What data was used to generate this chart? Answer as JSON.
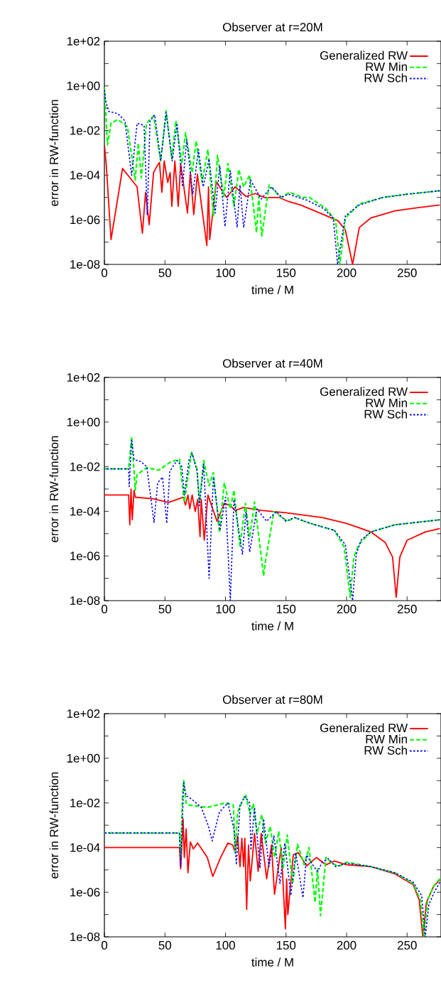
{
  "chart_data": [
    {
      "type": "line",
      "title": "Observer at r=20M",
      "xlabel": "time / M",
      "ylabel": "error in RW-function",
      "log": "y",
      "legend": "top right",
      "xlim": [
        0,
        278
      ],
      "xticks": [
        0,
        50,
        100,
        150,
        200,
        250
      ],
      "ylim": [
        1e-08,
        100
      ],
      "yticks": [
        {
          "value": 1e-08,
          "label": "1e-08"
        },
        {
          "value": 1e-07,
          "label": null
        },
        {
          "value": 1e-06,
          "label": "1e-06"
        },
        {
          "value": 1e-05,
          "label": null
        },
        {
          "value": 0.0001,
          "label": "1e-04"
        },
        {
          "value": 0.001,
          "label": null
        },
        {
          "value": 0.01,
          "label": "1e-02"
        },
        {
          "value": 0.1,
          "label": null
        },
        {
          "value": 1,
          "label": "1e+00"
        },
        {
          "value": 10,
          "label": null
        },
        {
          "value": 100,
          "label": "1e+02"
        }
      ],
      "series": [
        {
          "name": "Generalized RW",
          "color": "#ff0000",
          "line_style": "solid",
          "x": [
            0,
            1.5,
            5.5,
            15,
            27,
            31.4,
            34,
            37,
            40.6,
            43.5,
            45.5,
            47.5,
            49.4,
            52.3,
            54.3,
            55.7,
            58.2,
            61,
            63,
            68.6,
            71,
            73.8,
            76.8,
            84.6,
            86,
            87,
            92.4,
            101,
            108,
            117,
            124.6,
            132,
            144,
            152,
            162,
            181,
            193,
            199,
            205,
            210.5,
            220,
            240,
            259,
            277
          ],
          "values": [
            0.0023,
            0.0003,
            1.3e-07,
            0.0002,
            3e-05,
            2.5e-07,
            1.7e-05,
            6e-07,
            0.00013,
            0.00026,
            0.00037,
            1.7e-05,
            0.00043,
            4.7e-05,
            0.00013,
            4e-06,
            0.00043,
            4e-06,
            0.00033,
            2e-06,
            0.00013,
            1.7e-06,
            0.00011,
            7e-08,
            3e-05,
            1.3e-07,
            5e-05,
            1e-05,
            3e-05,
            1.1e-05,
            1.5e-05,
            1e-05,
            1e-05,
            6.6e-06,
            4.6e-06,
            1.7e-06,
            9e-07,
            3.5e-07,
            1e-08,
            4.5e-07,
            1.2e-06,
            2.5e-06,
            3.5e-06,
            4.6e-06
          ]
        },
        {
          "name": "RW Min",
          "color": "#00ff00",
          "line_style": "dashed",
          "x": [
            0,
            2.5,
            5.5,
            11,
            19,
            25.4,
            28,
            30.5,
            34.8,
            40.6,
            46.5,
            51,
            55.7,
            59,
            64,
            67,
            72.5,
            75.8,
            80.7,
            85.5,
            90,
            93.4,
            98.6,
            102,
            107,
            111,
            115,
            120,
            125.6,
            127.5,
            130,
            136,
            145.7,
            153,
            163.7,
            169.5,
            183,
            191,
            194.5,
            199,
            210.5,
            230,
            250,
            277
          ],
          "values": [
            0.85,
            0.0023,
            0.021,
            0.031,
            0.015,
            6e-05,
            0.0027,
            7.6e-05,
            0.021,
            0.045,
            0.00043,
            0.076,
            0.00054,
            0.027,
            0.00033,
            0.008,
            0.00013,
            0.0034,
            4.7e-05,
            0.0014,
            1.5e-06,
            0.00078,
            1.1e-05,
            0.00033,
            4e-06,
            0.00018,
            3e-05,
            9.8e-05,
            2.7e-07,
            1.1e-05,
            1.9e-07,
            3.6e-05,
            1e-05,
            1.7e-05,
            1e-05,
            1e-05,
            3.2e-06,
            9e-07,
            1e-08,
            1.2e-06,
            5.1e-06,
            1e-05,
            1.4e-05,
            2e-05
          ]
        },
        {
          "name": "RW Sch",
          "color": "#0000ff",
          "line_style": "dotted",
          "x": [
            0,
            1.2,
            3.5,
            11,
            17,
            22.5,
            27,
            32.8,
            35.4,
            37.7,
            41.6,
            46.5,
            51,
            56,
            60,
            64.5,
            68,
            73,
            77.7,
            81.6,
            86.5,
            91.4,
            95.3,
            99.6,
            104,
            109.6,
            112,
            115,
            120.7,
            129.5,
            138,
            146,
            152,
            167.6,
            181,
            189,
            192.6,
            199,
            210.5,
            230,
            250,
            277
          ],
          "values": [
            0.66,
            0.2,
            0.072,
            0.057,
            0.027,
            9.8e-05,
            0.021,
            0.017,
            1.7e-06,
            0.027,
            0.05,
            0.00043,
            0.064,
            0.00043,
            0.021,
            3e-05,
            0.0039,
            1.4e-05,
            0.0014,
            3e-05,
            0.00054,
            2e-06,
            0.00026,
            5e-07,
            0.00016,
            4.5e-07,
            3.6e-05,
            4.5e-07,
            6e-05,
            8.5e-06,
            3e-05,
            1e-05,
            1.4e-05,
            7.4e-06,
            3.2e-06,
            1.2e-06,
            1e-08,
            1.5e-06,
            4.6e-06,
            1e-05,
            1.4e-05,
            2e-05
          ]
        }
      ]
    },
    {
      "type": "line",
      "title": "Observer at r=40M",
      "xlabel": "time / M",
      "ylabel": "error in RW-function",
      "log": "y",
      "legend": "top right",
      "xlim": [
        0,
        278
      ],
      "xticks": [
        0,
        50,
        100,
        150,
        200,
        250
      ],
      "ylim": [
        1e-08,
        100
      ],
      "yticks": [
        {
          "value": 1e-08,
          "label": "1e-08"
        },
        {
          "value": 1e-07,
          "label": null
        },
        {
          "value": 1e-06,
          "label": "1e-06"
        },
        {
          "value": 1e-05,
          "label": null
        },
        {
          "value": 0.0001,
          "label": "1e-04"
        },
        {
          "value": 0.001,
          "label": null
        },
        {
          "value": 0.01,
          "label": "1e-02"
        },
        {
          "value": 0.1,
          "label": null
        },
        {
          "value": 1,
          "label": "1e+00"
        },
        {
          "value": 10,
          "label": null
        },
        {
          "value": 100,
          "label": "1e+02"
        }
      ],
      "series": [
        {
          "name": "Generalized RW",
          "color": "#ff0000",
          "line_style": "solid",
          "x": [
            0,
            20,
            21,
            22,
            23,
            24.5,
            25.5,
            40,
            53,
            60,
            65,
            67,
            69,
            70.5,
            72.5,
            75,
            77,
            79,
            80,
            82.5,
            85.5,
            93,
            99,
            104,
            108,
            115,
            130,
            150,
            180,
            200,
            220,
            232,
            238,
            241,
            244,
            250,
            265,
            277
          ],
          "values": [
            0.00054,
            0.00054,
            2.5e-05,
            0.001,
            4.2e-05,
            0.00089,
            0.00043,
            0.00037,
            0.00025,
            0.00034,
            0.00043,
            0.00019,
            0.00054,
            0.00013,
            0.00054,
            9.8e-05,
            0.00034,
            7.4e-06,
            0.00034,
            5.1e-06,
            0.00054,
            3.6e-05,
            0.00023,
            0.00018,
            0.00011,
            0.00015,
            0.00011,
            8.7e-05,
            5.3e-05,
            2.9e-05,
            1.2e-05,
            4e-06,
            9e-07,
            1.4e-08,
            9e-07,
            5.1e-06,
            1.2e-05,
            1.7e-05
          ]
        },
        {
          "name": "RW Min",
          "color": "#00ff00",
          "line_style": "dashed",
          "x": [
            0,
            20,
            22.5,
            24.5,
            25.5,
            27,
            35,
            45,
            55,
            62,
            66,
            72,
            76.5,
            78.5,
            82,
            86.5,
            90,
            95,
            99,
            104,
            107,
            112,
            116.5,
            120,
            124,
            131.5,
            133,
            140,
            151,
            157,
            170,
            190,
            198,
            203,
            206,
            210,
            220,
            240,
            277
          ],
          "values": [
            0.008,
            0.008,
            0.22,
            0.0063,
            0.00089,
            0.0044,
            0.0091,
            0.007,
            0.017,
            0.021,
            0.00026,
            0.045,
            0.008,
            0.00026,
            0.019,
            0.0014,
            0.0055,
            1.1e-05,
            0.0019,
            0.00013,
            0.00089,
            2.8e-06,
            0.00023,
            6.6e-06,
            0.00026,
            1.3e-07,
            5.7e-07,
            9.8e-05,
            3.6e-05,
            5.3e-05,
            2.9e-05,
            1.4e-05,
            2.5e-06,
            1.4e-08,
            9e-07,
            3.2e-06,
            1.2e-05,
            2.5e-05,
            4.2e-05
          ]
        },
        {
          "name": "RW Sch",
          "color": "#0000ff",
          "line_style": "dotted",
          "x": [
            0,
            20,
            20.5,
            22.5,
            24.5,
            30,
            35,
            41,
            44,
            48,
            51.5,
            54,
            60,
            64,
            66,
            70,
            72.5,
            76.5,
            78.5,
            82,
            86.5,
            90,
            95.5,
            100,
            104,
            107,
            114,
            117,
            120,
            126,
            134,
            142,
            150,
            157,
            170,
            190,
            199,
            205,
            208,
            212,
            220,
            240,
            277
          ],
          "values": [
            0.008,
            0.008,
            0.0013,
            0.15,
            0.021,
            0.017,
            0.01,
            3.2e-05,
            0.0019,
            0.0034,
            2.9e-05,
            0.0063,
            0.019,
            0.01,
            0.00054,
            0.021,
            0.04,
            0.0063,
            0.00018,
            0.013,
            1e-07,
            0.0034,
            1.4e-05,
            0.00043,
            1e-08,
            0.00034,
            1.2e-06,
            9.8e-05,
            1.5e-06,
            0.00013,
            3.6e-05,
            9.8e-05,
            3.6e-05,
            5.3e-05,
            2.9e-05,
            1.4e-05,
            3.2e-06,
            1e-08,
            1.2e-06,
            5.1e-06,
            1.2e-05,
            2.5e-05,
            4.2e-05
          ]
        }
      ]
    },
    {
      "type": "line",
      "title": "Observer at r=80M",
      "xlabel": "time / M",
      "ylabel": "error in RW-function",
      "log": "y",
      "legend": "top right",
      "xlim": [
        0,
        278
      ],
      "xticks": [
        0,
        50,
        100,
        150,
        200,
        250
      ],
      "ylim": [
        1e-08,
        100
      ],
      "yticks": [
        {
          "value": 1e-08,
          "label": "1e-08"
        },
        {
          "value": 1e-07,
          "label": null
        },
        {
          "value": 1e-06,
          "label": "1e-06"
        },
        {
          "value": 1e-05,
          "label": null
        },
        {
          "value": 0.0001,
          "label": "1e-04"
        },
        {
          "value": 0.001,
          "label": null
        },
        {
          "value": 0.01,
          "label": "1e-02"
        },
        {
          "value": 0.1,
          "label": null
        },
        {
          "value": 1,
          "label": "1e+00"
        },
        {
          "value": 10,
          "label": null
        },
        {
          "value": 100,
          "label": "1e+02"
        }
      ],
      "series": [
        {
          "name": "Generalized RW",
          "color": "#ff0000",
          "line_style": "solid",
          "x": [
            0,
            62,
            63,
            64,
            65,
            66,
            67.5,
            69,
            71,
            73.5,
            77,
            85,
            89.5,
            96,
            102,
            106,
            108,
            110,
            112,
            113.5,
            115,
            116,
            117.5,
            119,
            120.5,
            124,
            127,
            129.5,
            134,
            138,
            140.5,
            146,
            149.5,
            150.5,
            151.5,
            156,
            160,
            167,
            175,
            183,
            190,
            200,
            220,
            240,
            255,
            260,
            263,
            266,
            272,
            277
          ],
          "values": [
            0.0001,
            0.0001,
            1.1e-05,
            0.00013,
            0.0019,
            3.6e-05,
            0.00069,
            7.4e-06,
            0.00018,
            8.7e-05,
            0.00016,
            3.6e-05,
            5.1e-06,
            3.6e-05,
            0.00016,
            0.00013,
            6e-05,
            0.00033,
            1.4e-05,
            0.00026,
            1.4e-05,
            0.00026,
            1.7e-07,
            0.00013,
            3.2e-06,
            0.00043,
            8.5e-06,
            0.00043,
            4e-06,
            0.00013,
            8.1e-07,
            0.0001,
            2.3e-08,
            4e-06,
            1e-07,
            4.7e-05,
            6e-05,
            1.5e-05,
            3.6e-05,
            1.7e-05,
            2.5e-05,
            1.7e-05,
            1.4e-05,
            6.6e-06,
            2.2e-06,
            4.5e-07,
            1e-08,
            3.5e-07,
            1.9e-06,
            3.5e-06
          ]
        },
        {
          "name": "RW Min",
          "color": "#00ff00",
          "line_style": "dashed",
          "x": [
            0,
            62,
            63,
            64.5,
            65.5,
            67.5,
            70,
            85,
            100,
            106.5,
            108,
            110,
            116.5,
            120.5,
            123,
            126,
            130,
            133,
            137,
            140.5,
            144,
            147.5,
            151,
            155.5,
            159.5,
            165,
            169,
            174,
            176,
            178.5,
            183,
            187,
            193,
            200,
            220,
            240,
            255,
            261,
            264,
            267,
            272,
            277
          ],
          "values": [
            0.00045,
            0.00045,
            3.6e-05,
            0.017,
            0.1,
            0.01,
            0.008,
            0.0063,
            0.01,
            0.008,
            6e-05,
            0.0039,
            0.024,
            0.003,
            0.0094,
            0.00043,
            0.003,
            0.00016,
            0.00089,
            3.6e-05,
            0.00054,
            1.1e-05,
            0.00037,
            2.5e-06,
            0.00014,
            1.7e-05,
            0.0001,
            3.5e-07,
            1.1e-05,
            9e-08,
            3.6e-05,
            2.2e-05,
            1.4e-05,
            2.2e-05,
            1.4e-05,
            7.4e-06,
            2.5e-06,
            4.5e-07,
            1e-08,
            4.5e-07,
            1.9e-06,
            4e-06
          ]
        },
        {
          "name": "RW Sch",
          "color": "#0000ff",
          "line_style": "dotted",
          "x": [
            0,
            62,
            63,
            65.5,
            67.5,
            72,
            80,
            86,
            89,
            95,
            102,
            107,
            109,
            112,
            116,
            120,
            121,
            124,
            128.5,
            131.5,
            136,
            140,
            145,
            149,
            154,
            158,
            164,
            167,
            172,
            176,
            180,
            185,
            191,
            200,
            220,
            240,
            255,
            262,
            265,
            268,
            272,
            277
          ],
          "values": [
            0.00045,
            0.00045,
            1.4e-05,
            0.081,
            0.021,
            0.015,
            0.0063,
            0.00089,
            0.0002,
            0.0039,
            0.01,
            0.00069,
            1.7e-05,
            0.008,
            0.019,
            0.01,
            7.6e-05,
            0.0063,
            1.2e-05,
            0.0019,
            1.4e-05,
            0.00033,
            2.5e-06,
            0.00016,
            7.2e-07,
            6e-05,
            5.7e-07,
            4.7e-05,
            1.7e-05,
            8.5e-06,
            2.2e-05,
            3.2e-05,
            1.4e-05,
            2e-05,
            1.4e-05,
            7.4e-06,
            2.8e-06,
            7.2e-07,
            1e-08,
            2.8e-07,
            9e-07,
            2.8e-06
          ]
        }
      ]
    }
  ]
}
